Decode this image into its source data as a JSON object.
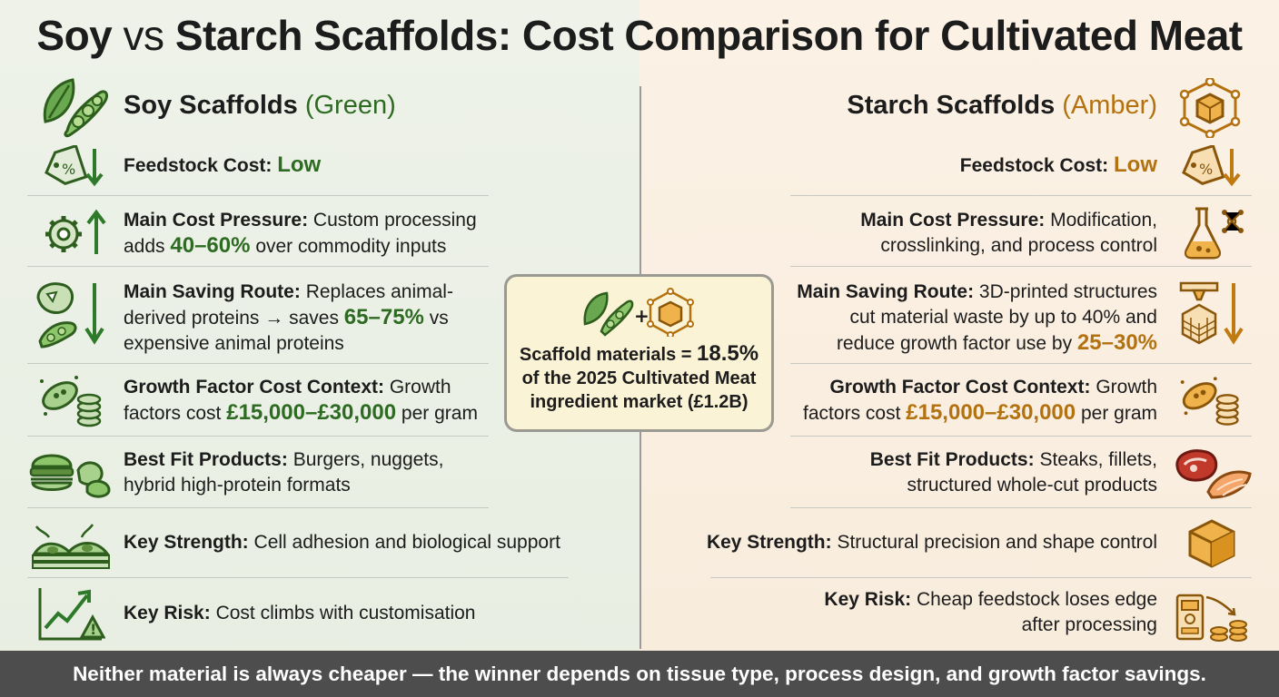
{
  "title": {
    "part1": "Soy",
    "vs": "vs",
    "part2": "Starch Scaffolds: Cost Comparison for Cultivated Meat"
  },
  "colors": {
    "soy_green": "#2e6b22",
    "starch_amber": "#b3720f",
    "footer_bg": "#4d4d4d"
  },
  "soy": {
    "heading": "Soy Scaffolds",
    "tag": "(Green)",
    "icon": "soybean-leaf-icon",
    "feedstock": {
      "label": "Feedstock Cost:",
      "value": "Low",
      "icon": "price-tag-down-icon"
    },
    "pressure": {
      "label": "Main Cost Pressure:",
      "text1": "Custom processing",
      "text2a": "adds",
      "value": "40–60%",
      "text2b": "over commodity inputs",
      "icon": "gear-up-icon"
    },
    "saving": {
      "label": "Main Saving Route:",
      "text1": "Replaces animal-",
      "text2a": "derived proteins → saves",
      "value": "65–75%",
      "text2b": "vs",
      "text3": "expensive animal proteins",
      "icon": "meat-to-soy-icon"
    },
    "growth": {
      "label": "Growth Factor Cost Context:",
      "text1": "Growth",
      "text2a": "factors cost",
      "value": "£15,000–£30,000",
      "text2b": "per gram",
      "icon": "cell-coins-icon"
    },
    "fit": {
      "label": "Best Fit Products:",
      "text1": "Burgers, nuggets,",
      "text2": "hybrid high-protein formats",
      "icon": "burger-nuggets-icon"
    },
    "strength": {
      "label": "Key Strength:",
      "text": "Cell adhesion and biological support",
      "icon": "cell-adhesion-icon"
    },
    "risk": {
      "label": "Key Risk:",
      "text": "Cost climbs with customisation",
      "icon": "rising-chart-warning-icon"
    }
  },
  "starch": {
    "heading": "Starch Scaffolds",
    "tag": "(Amber)",
    "icon": "lattice-cube-icon",
    "feedstock": {
      "label": "Feedstock Cost:",
      "value": "Low",
      "icon": "price-tag-down-icon"
    },
    "pressure": {
      "label": "Main Cost Pressure:",
      "text1": "Modification,",
      "text2": "crosslinking, and process control",
      "icon": "flask-molecule-icon"
    },
    "saving": {
      "label": "Main Saving Route:",
      "text1": "3D-printed structures",
      "text2": "cut material waste by up to 40% and",
      "text3a": "reduce growth factor use by",
      "value": "25–30%",
      "icon": "3d-printer-down-icon"
    },
    "growth": {
      "label": "Growth Factor Cost Context:",
      "text1": "Growth",
      "text2a": "factors cost",
      "value": "£15,000–£30,000",
      "text2b": "per gram",
      "icon": "cell-coins-icon"
    },
    "fit": {
      "label": "Best Fit Products:",
      "text1": "Steaks, fillets,",
      "text2": "structured whole-cut products",
      "icon": "steak-fillet-icon"
    },
    "strength": {
      "label": "Key Strength:",
      "text": "Structural precision and shape control",
      "icon": "cube-icon"
    },
    "risk": {
      "label": "Key Risk:",
      "text1": "Cheap feedstock loses edge",
      "text2": "after processing",
      "icon": "process-coins-icon"
    }
  },
  "center": {
    "line1a": "Scaffold materials =",
    "value": "18.5%",
    "line2": "of the 2025 Cultivated Meat",
    "line3": "ingredient market (£1.2B)",
    "icon": "soy-plus-lattice-icon"
  },
  "footer": "Neither material is always cheaper — the winner depends on tissue type, process design, and growth factor savings."
}
